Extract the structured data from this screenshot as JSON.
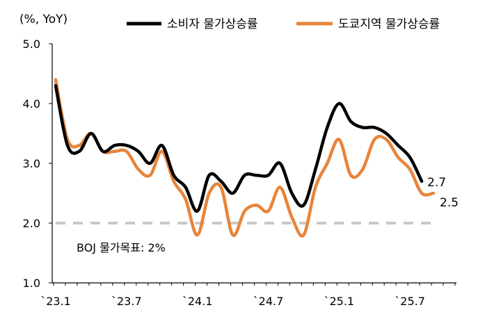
{
  "chart_data": {
    "type": "line",
    "unit_label": "(%, YoY)",
    "ylim": [
      1.0,
      5.0
    ],
    "yticks": [
      "1.0",
      "2.0",
      "3.0",
      "4.0",
      "5.0"
    ],
    "ytick_values": [
      1,
      2,
      3,
      4,
      5
    ],
    "xtick_labels": [
      "`23.1",
      "`23.7",
      "`24.1",
      "`24.7",
      "`25.1",
      "`25.7"
    ],
    "xtick_index": [
      0,
      6,
      12,
      18,
      24,
      30
    ],
    "grid": false,
    "legend_position": "top",
    "series": [
      {
        "name": "소비자 물가상승률",
        "color": "#000000",
        "start": "2023-01",
        "values": [
          4.3,
          3.3,
          3.2,
          3.5,
          3.2,
          3.3,
          3.3,
          3.2,
          3.0,
          3.3,
          2.8,
          2.6,
          2.2,
          2.8,
          2.7,
          2.5,
          2.8,
          2.8,
          2.8,
          3.0,
          2.5,
          2.3,
          2.9,
          3.6,
          4.0,
          3.7,
          3.6,
          3.6,
          3.5,
          3.3,
          3.1,
          2.7
        ],
        "end_label": "2.7"
      },
      {
        "name": "도쿄지역 물가상승률",
        "color": "#E8843A",
        "start": "2023-01",
        "values": [
          4.4,
          3.4,
          3.3,
          3.5,
          3.2,
          3.2,
          3.2,
          2.9,
          2.8,
          3.2,
          2.7,
          2.4,
          1.8,
          2.5,
          2.6,
          1.8,
          2.2,
          2.3,
          2.2,
          2.6,
          2.1,
          1.8,
          2.6,
          3.0,
          3.4,
          2.8,
          2.9,
          3.4,
          3.4,
          3.1,
          2.9,
          2.5,
          2.5
        ],
        "end_label": "2.5"
      }
    ],
    "reference_line": {
      "value": 2.0,
      "label": "BOJ 물가목표: 2%",
      "color": "#C8C8C8"
    }
  }
}
